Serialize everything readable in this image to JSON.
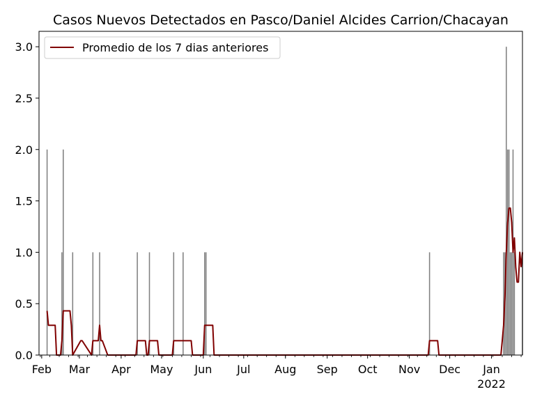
{
  "chart_data": {
    "type": "bar",
    "title": "Casos Nuevos Detectados en Pasco/Daniel Alcides Carrion/Chacayan",
    "xlabel": "",
    "ylabel": "",
    "ylim": [
      0,
      3.15
    ],
    "xlim": [
      "2021-01-30",
      "2022-01-24"
    ],
    "yticks": [
      0.0,
      0.5,
      1.0,
      1.5,
      2.0,
      2.5,
      3.0
    ],
    "ytick_labels": [
      "0.0",
      "0.5",
      "1.0",
      "1.5",
      "2.0",
      "2.5",
      "3.0"
    ],
    "xticks": [
      {
        "date": "2021-02-01",
        "label": "Feb"
      },
      {
        "date": "2021-03-01",
        "label": "Mar"
      },
      {
        "date": "2021-04-01",
        "label": "Apr"
      },
      {
        "date": "2021-05-01",
        "label": "May"
      },
      {
        "date": "2021-06-01",
        "label": "Jun"
      },
      {
        "date": "2021-07-01",
        "label": "Jul"
      },
      {
        "date": "2021-08-01",
        "label": "Aug"
      },
      {
        "date": "2021-09-01",
        "label": "Sep"
      },
      {
        "date": "2021-10-01",
        "label": "Oct"
      },
      {
        "date": "2021-11-01",
        "label": "Nov"
      },
      {
        "date": "2021-12-01",
        "label": "Dec"
      },
      {
        "date": "2022-01-01",
        "label": "Jan",
        "sublabel": "2022"
      }
    ],
    "grid": false,
    "legend_position": "top-left",
    "colors": {
      "bars": "#808080",
      "line": "#800000"
    },
    "series": [
      {
        "type": "bar",
        "dates": [
          "2021-02-05",
          "2021-02-16",
          "2021-02-17",
          "2021-02-24",
          "2021-03-11",
          "2021-03-16",
          "2021-04-13",
          "2021-04-22",
          "2021-05-10",
          "2021-05-17",
          "2021-06-02",
          "2021-06-03",
          "2021-11-16",
          "2022-01-10",
          "2022-01-11",
          "2022-01-12",
          "2022-01-13",
          "2022-01-14",
          "2022-01-15",
          "2022-01-16",
          "2022-01-17",
          "2022-01-18",
          "2022-01-24"
        ],
        "values": [
          2,
          1,
          2,
          1,
          1,
          1,
          1,
          1,
          1,
          1,
          1,
          1,
          1,
          1,
          1,
          3,
          2,
          2,
          1,
          1,
          2,
          1,
          1
        ]
      },
      {
        "type": "line",
        "name": "Promedio de los 7 dias anteriores",
        "dates": [
          "2021-02-05",
          "2021-02-06",
          "2021-02-11",
          "2021-02-12",
          "2021-02-15",
          "2021-02-16",
          "2021-02-17",
          "2021-02-22",
          "2021-02-23",
          "2021-02-24",
          "2021-03-02",
          "2021-03-03",
          "2021-03-10",
          "2021-03-11",
          "2021-03-15",
          "2021-03-16",
          "2021-03-17",
          "2021-03-18",
          "2021-03-22",
          "2021-03-23",
          "2021-04-12",
          "2021-04-13",
          "2021-04-19",
          "2021-04-20",
          "2021-04-21",
          "2021-04-22",
          "2021-04-28",
          "2021-04-29",
          "2021-05-09",
          "2021-05-10",
          "2021-05-23",
          "2021-05-24",
          "2021-06-01",
          "2021-06-02",
          "2021-06-08",
          "2021-06-09",
          "2021-11-15",
          "2021-11-16",
          "2021-11-22",
          "2021-11-23",
          "2022-01-08",
          "2022-01-09",
          "2022-01-10",
          "2022-01-11",
          "2022-01-12",
          "2022-01-13",
          "2022-01-14",
          "2022-01-15",
          "2022-01-16",
          "2022-01-17",
          "2022-01-18",
          "2022-01-19",
          "2022-01-20",
          "2022-01-21",
          "2022-01-22",
          "2022-01-23",
          "2022-01-24"
        ],
        "values": [
          0.43,
          0.29,
          0.29,
          0.0,
          0.0,
          0.14,
          0.43,
          0.43,
          0.29,
          0.0,
          0.14,
          0.14,
          0.0,
          0.14,
          0.14,
          0.29,
          0.14,
          0.14,
          0.0,
          0.0,
          0.0,
          0.14,
          0.14,
          0.0,
          0.0,
          0.14,
          0.14,
          0.0,
          0.0,
          0.14,
          0.14,
          0.0,
          0.0,
          0.29,
          0.29,
          0.0,
          0.0,
          0.14,
          0.14,
          0.0,
          0.0,
          0.14,
          0.29,
          0.57,
          1.0,
          1.29,
          1.43,
          1.43,
          1.29,
          1.0,
          1.14,
          0.86,
          0.71,
          0.71,
          1.0,
          0.86,
          1.0
        ]
      }
    ]
  }
}
